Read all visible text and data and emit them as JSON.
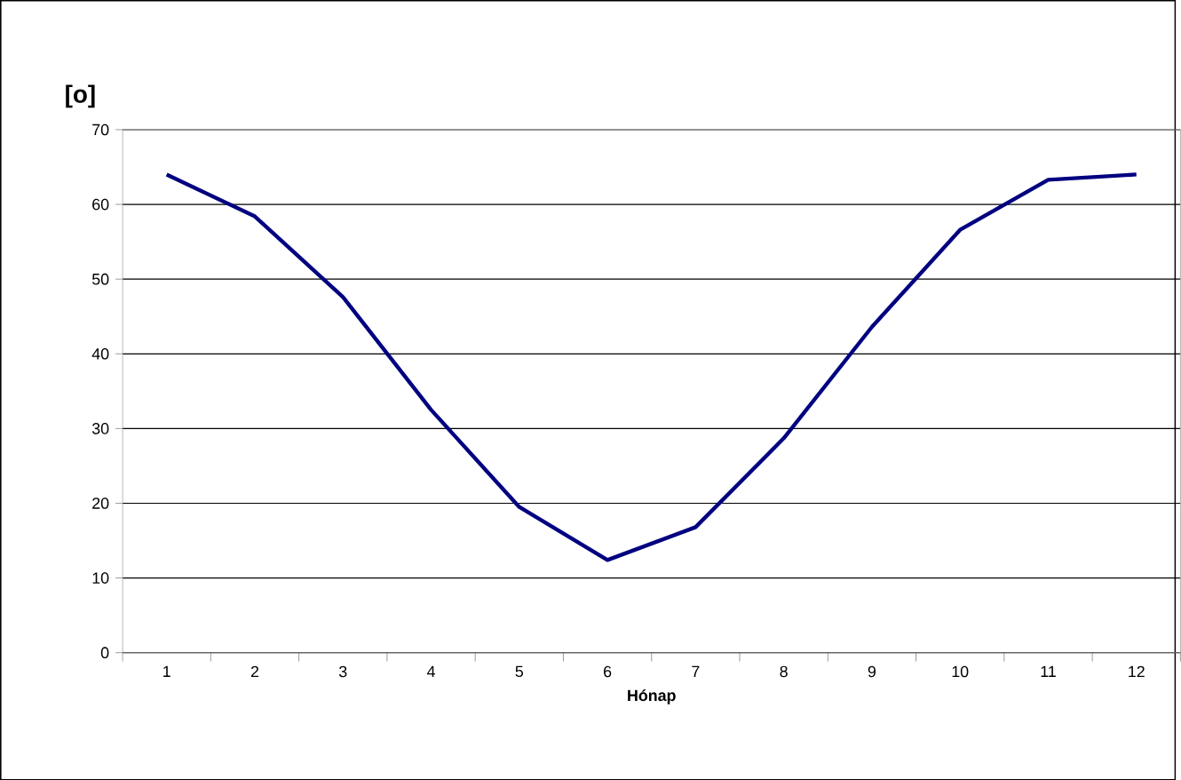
{
  "chart_data": {
    "type": "line",
    "ylabel": "**[o]**",
    "xlabel": "**Hónap**",
    "categories": [
      "1",
      "2",
      "3",
      "4",
      "5",
      "6",
      "7",
      "8",
      "9",
      "10",
      "11",
      "12"
    ],
    "series": [
      {
        "color": "#000080",
        "values": [
          64,
          58.4,
          47.6,
          32.5,
          19.5,
          12.4,
          16.8,
          28.7,
          43.6,
          56.6,
          63.3,
          64
        ]
      }
    ],
    "ylim": [
      0,
      70
    ],
    "yticks": [
      0,
      10,
      20,
      30,
      40,
      50,
      60,
      70
    ],
    "grid": "y",
    "marker": "none",
    "line_style": "solid"
  }
}
